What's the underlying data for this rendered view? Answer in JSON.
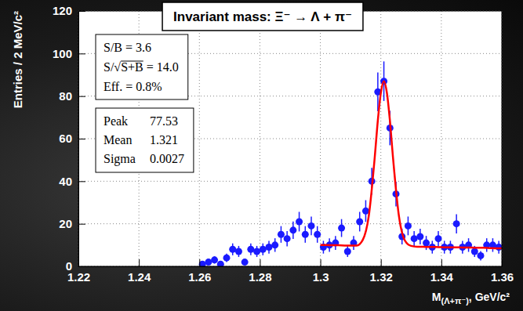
{
  "chart_data": {
    "type": "scatter",
    "title": "Invariant mass: Ξ⁻ → Λ + π⁻",
    "x_label": "M(Λ+π⁻), GeV/c²",
    "y_label": "Entries / 2 MeV/c²",
    "xlim": [
      1.22,
      1.36
    ],
    "xticks": [
      1.22,
      1.24,
      1.26,
      1.28,
      1.3,
      1.32,
      1.34,
      1.36
    ],
    "ylim": [
      0,
      120
    ],
    "yticks": [
      0,
      20,
      40,
      60,
      80,
      100,
      120
    ],
    "grid": true,
    "annotations": {
      "cuts": [
        "S/B = 3.6",
        "S/√S+B = 14.0",
        "Eff. = 0.8%"
      ],
      "fit": [
        {
          "label": "Peak",
          "value": "77.53"
        },
        {
          "label": "Mean",
          "value": "1.321"
        },
        {
          "label": "Sigma",
          "value": "0.0027"
        }
      ]
    },
    "series": [
      {
        "type": "scatter",
        "marker": "circle",
        "color": "#1a1aff",
        "x": [
          1.261,
          1.263,
          1.265,
          1.267,
          1.269,
          1.271,
          1.273,
          1.275,
          1.277,
          1.279,
          1.281,
          1.283,
          1.285,
          1.287,
          1.289,
          1.291,
          1.293,
          1.295,
          1.297,
          1.299,
          1.301,
          1.303,
          1.305,
          1.307,
          1.309,
          1.311,
          1.313,
          1.315,
          1.317,
          1.319,
          1.321,
          1.323,
          1.325,
          1.327,
          1.329,
          1.331,
          1.333,
          1.335,
          1.337,
          1.339,
          1.341,
          1.343,
          1.345,
          1.347,
          1.349,
          1.351,
          1.353,
          1.355,
          1.357,
          1.359
        ],
        "values": [
          1,
          2,
          3,
          1,
          4,
          8,
          7,
          2,
          8,
          7,
          8,
          9,
          10,
          15,
          13,
          17,
          21,
          15,
          19,
          15,
          9,
          10,
          11,
          18,
          7,
          11,
          21,
          26,
          40,
          82,
          87,
          65,
          34,
          14,
          19,
          13,
          14,
          11,
          9,
          13,
          9,
          9,
          20,
          9,
          10,
          7,
          5,
          10,
          10,
          9
        ],
        "errors": [
          1,
          1.4,
          1.7,
          1,
          2,
          2.8,
          2.6,
          1.4,
          2.8,
          2.6,
          2.8,
          3,
          3.2,
          3.9,
          3.6,
          4.1,
          4.6,
          3.9,
          4.4,
          3.9,
          3,
          3.2,
          3.3,
          4.2,
          2.6,
          3.3,
          4.6,
          5.1,
          6.3,
          9.1,
          9.3,
          8.1,
          5.8,
          3.7,
          4.4,
          3.6,
          3.7,
          3.3,
          3,
          3.6,
          3,
          3,
          4.5,
          3,
          3.2,
          2.6,
          2.2,
          3.2,
          3.2,
          3
        ]
      },
      {
        "type": "line",
        "line_style": "solid",
        "color": "#ff0000",
        "x": [
          1.3,
          1.302,
          1.304,
          1.306,
          1.308,
          1.31,
          1.312,
          1.314,
          1.316,
          1.318,
          1.319,
          1.32,
          1.321,
          1.322,
          1.323,
          1.324,
          1.326,
          1.328,
          1.33,
          1.332,
          1.334,
          1.336,
          1.338,
          1.34,
          1.342,
          1.344,
          1.346,
          1.348,
          1.35,
          1.352,
          1.354,
          1.356,
          1.358,
          1.36
        ],
        "values": [
          10.0,
          10.0,
          9.9,
          9.9,
          9.8,
          9.8,
          9.8,
          12.4,
          23.6,
          51.6,
          68.5,
          81.5,
          87.0,
          81.5,
          68.4,
          51.4,
          23.4,
          12.0,
          9.6,
          9.2,
          9.2,
          9.1,
          9.1,
          9.0,
          8.9,
          8.9,
          8.9,
          8.8,
          8.8,
          8.7,
          8.7,
          8.6,
          8.5,
          8.5
        ]
      }
    ]
  }
}
